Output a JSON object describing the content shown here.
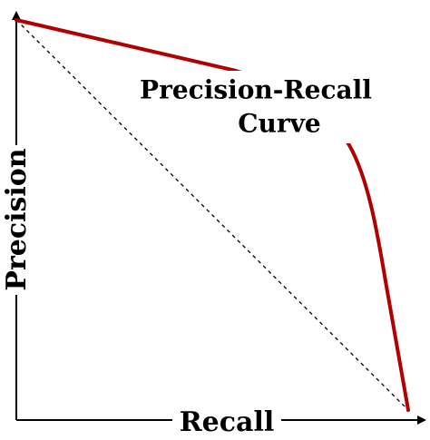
{
  "title_lines": [
    "Precision-Recall",
    "Curve"
  ],
  "x_axis_label": "Recall",
  "y_axis_label": "Precision"
}
